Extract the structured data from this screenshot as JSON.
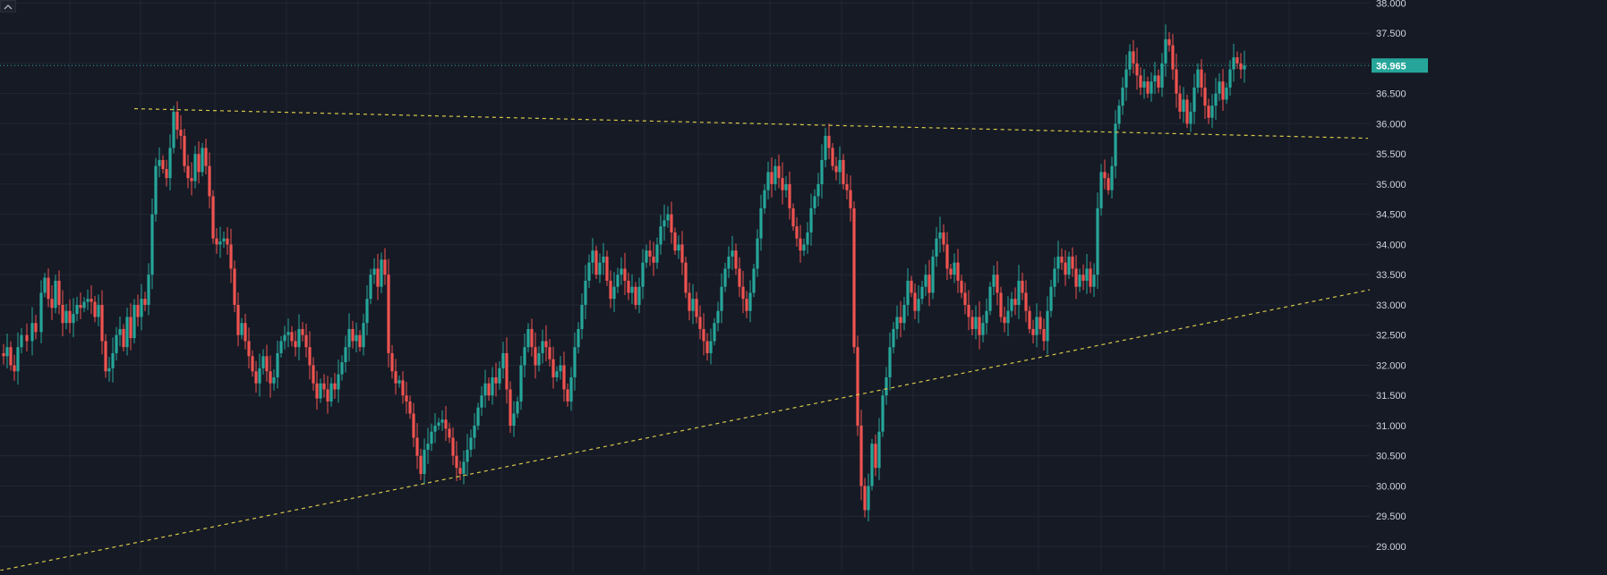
{
  "colors": {
    "background": "#161a25",
    "grid": "#232733",
    "up": "#26a69a",
    "down": "#ef5350",
    "trendline": "#d6c84a",
    "price_line": "#26a69a",
    "axis_text": "#d1d4dc"
  },
  "toolbar": {
    "collapse_icon": "chevron-up-icon"
  },
  "chart_data": {
    "type": "candlestick",
    "title": "",
    "y_axis": {
      "min": 28.6,
      "max": 38.05,
      "ticks": [
        "29.000",
        "29.500",
        "30.000",
        "30.500",
        "31.000",
        "31.500",
        "32.000",
        "32.500",
        "33.000",
        "33.500",
        "34.000",
        "34.500",
        "35.000",
        "35.500",
        "36.000",
        "36.500",
        "37.000",
        "37.500",
        "38.000"
      ]
    },
    "last_price": {
      "value": 36.965,
      "label": "36.965"
    },
    "grid": true,
    "series_points": [
      [
        0,
        32.2
      ],
      [
        4,
        32.15
      ],
      [
        8,
        32.3
      ],
      [
        12,
        32.0
      ],
      [
        16,
        31.9
      ],
      [
        20,
        32.3
      ],
      [
        24,
        32.5
      ],
      [
        30,
        32.4
      ],
      [
        36,
        32.7
      ],
      [
        40,
        32.55
      ],
      [
        46,
        33.2
      ],
      [
        50,
        33.45
      ],
      [
        54,
        33.1
      ],
      [
        58,
        32.95
      ],
      [
        62,
        33.4
      ],
      [
        66,
        33.0
      ],
      [
        70,
        32.7
      ],
      [
        74,
        32.9
      ],
      [
        78,
        32.7
      ],
      [
        82,
        32.85
      ],
      [
        86,
        33.0
      ],
      [
        90,
        32.95
      ],
      [
        94,
        33.05
      ],
      [
        98,
        33.1
      ],
      [
        102,
        33.05
      ],
      [
        106,
        32.8
      ],
      [
        110,
        33.0
      ],
      [
        114,
        32.4
      ],
      [
        118,
        31.9
      ],
      [
        122,
        31.95
      ],
      [
        126,
        32.2
      ],
      [
        130,
        32.5
      ],
      [
        134,
        32.6
      ],
      [
        138,
        32.3
      ],
      [
        142,
        32.8
      ],
      [
        146,
        32.45
      ],
      [
        150,
        33.0
      ],
      [
        154,
        32.8
      ],
      [
        158,
        33.1
      ],
      [
        162,
        33.0
      ],
      [
        166,
        33.5
      ],
      [
        170,
        34.5
      ],
      [
        174,
        35.3
      ],
      [
        178,
        35.4
      ],
      [
        182,
        35.25
      ],
      [
        186,
        35.1
      ],
      [
        190,
        35.6
      ],
      [
        194,
        36.2
      ],
      [
        198,
        35.9
      ],
      [
        202,
        35.8
      ],
      [
        206,
        35.3
      ],
      [
        210,
        35.1
      ],
      [
        214,
        35.05
      ],
      [
        218,
        35.5
      ],
      [
        222,
        35.2
      ],
      [
        226,
        35.6
      ],
      [
        230,
        35.3
      ],
      [
        234,
        34.8
      ],
      [
        238,
        34.1
      ],
      [
        242,
        34.0
      ],
      [
        246,
        34.05
      ],
      [
        250,
        34.1
      ],
      [
        254,
        34.0
      ],
      [
        258,
        33.6
      ],
      [
        262,
        33.0
      ],
      [
        266,
        32.5
      ],
      [
        270,
        32.7
      ],
      [
        274,
        32.4
      ],
      [
        278,
        32.15
      ],
      [
        282,
        31.9
      ],
      [
        286,
        31.7
      ],
      [
        290,
        31.95
      ],
      [
        294,
        32.15
      ],
      [
        298,
        31.9
      ],
      [
        302,
        31.7
      ],
      [
        306,
        31.8
      ],
      [
        310,
        32.2
      ],
      [
        314,
        32.4
      ],
      [
        318,
        32.5
      ],
      [
        322,
        32.55
      ],
      [
        326,
        32.4
      ],
      [
        330,
        32.3
      ],
      [
        334,
        32.6
      ],
      [
        338,
        32.5
      ],
      [
        342,
        32.3
      ],
      [
        346,
        32.0
      ],
      [
        350,
        31.7
      ],
      [
        354,
        31.45
      ],
      [
        358,
        31.7
      ],
      [
        362,
        31.6
      ],
      [
        366,
        31.4
      ],
      [
        370,
        31.7
      ],
      [
        374,
        31.6
      ],
      [
        378,
        31.85
      ],
      [
        382,
        32.05
      ],
      [
        386,
        32.3
      ],
      [
        390,
        32.6
      ],
      [
        394,
        32.4
      ],
      [
        398,
        32.5
      ],
      [
        402,
        32.3
      ],
      [
        406,
        32.7
      ],
      [
        410,
        33.1
      ],
      [
        414,
        33.5
      ],
      [
        418,
        33.6
      ],
      [
        422,
        33.3
      ],
      [
        426,
        33.75
      ],
      [
        430,
        33.5
      ],
      [
        434,
        32.2
      ],
      [
        438,
        31.9
      ],
      [
        442,
        31.7
      ],
      [
        446,
        31.75
      ],
      [
        450,
        31.5
      ],
      [
        454,
        31.4
      ],
      [
        458,
        31.2
      ],
      [
        462,
        30.8
      ],
      [
        466,
        30.5
      ],
      [
        470,
        30.2
      ],
      [
        474,
        30.6
      ],
      [
        478,
        30.7
      ],
      [
        482,
        30.9
      ],
      [
        486,
        31.0
      ],
      [
        490,
        31.05
      ],
      [
        494,
        31.1
      ],
      [
        498,
        30.95
      ],
      [
        502,
        30.8
      ],
      [
        506,
        30.5
      ],
      [
        510,
        30.3
      ],
      [
        514,
        30.2
      ],
      [
        518,
        30.4
      ],
      [
        522,
        30.6
      ],
      [
        526,
        30.8
      ],
      [
        530,
        31.0
      ],
      [
        534,
        31.3
      ],
      [
        538,
        31.5
      ],
      [
        542,
        31.7
      ],
      [
        546,
        31.5
      ],
      [
        550,
        31.8
      ],
      [
        554,
        31.7
      ],
      [
        558,
        31.95
      ],
      [
        562,
        32.2
      ],
      [
        566,
        31.6
      ],
      [
        570,
        31.0
      ],
      [
        574,
        31.2
      ],
      [
        578,
        31.4
      ],
      [
        582,
        32.0
      ],
      [
        586,
        32.3
      ],
      [
        590,
        32.6
      ],
      [
        594,
        32.3
      ],
      [
        598,
        32.0
      ],
      [
        602,
        32.2
      ],
      [
        606,
        32.4
      ],
      [
        610,
        32.3
      ],
      [
        614,
        32.1
      ],
      [
        618,
        31.8
      ],
      [
        622,
        31.9
      ],
      [
        626,
        32.0
      ],
      [
        630,
        31.6
      ],
      [
        634,
        31.4
      ],
      [
        638,
        31.8
      ],
      [
        642,
        32.3
      ],
      [
        646,
        32.6
      ],
      [
        650,
        33.0
      ],
      [
        654,
        33.4
      ],
      [
        658,
        33.7
      ],
      [
        662,
        33.9
      ],
      [
        666,
        33.5
      ],
      [
        670,
        33.7
      ],
      [
        674,
        33.8
      ],
      [
        678,
        33.4
      ],
      [
        682,
        33.1
      ],
      [
        686,
        33.3
      ],
      [
        690,
        33.5
      ],
      [
        694,
        33.6
      ],
      [
        698,
        33.4
      ],
      [
        702,
        33.2
      ],
      [
        706,
        33.3
      ],
      [
        710,
        33.0
      ],
      [
        714,
        33.3
      ],
      [
        718,
        33.7
      ],
      [
        722,
        33.9
      ],
      [
        726,
        33.8
      ],
      [
        730,
        33.7
      ],
      [
        734,
        34.0
      ],
      [
        738,
        34.3
      ],
      [
        742,
        34.4
      ],
      [
        746,
        34.5
      ],
      [
        750,
        34.2
      ],
      [
        754,
        33.9
      ],
      [
        758,
        34.0
      ],
      [
        762,
        33.7
      ],
      [
        766,
        33.2
      ],
      [
        770,
        32.9
      ],
      [
        774,
        33.1
      ],
      [
        778,
        32.8
      ],
      [
        782,
        32.6
      ],
      [
        786,
        32.4
      ],
      [
        790,
        32.2
      ],
      [
        794,
        32.4
      ],
      [
        798,
        32.7
      ],
      [
        802,
        32.9
      ],
      [
        806,
        33.3
      ],
      [
        810,
        33.6
      ],
      [
        814,
        33.8
      ],
      [
        818,
        33.9
      ],
      [
        822,
        33.6
      ],
      [
        826,
        33.3
      ],
      [
        830,
        33.1
      ],
      [
        834,
        32.9
      ],
      [
        838,
        33.2
      ],
      [
        842,
        33.6
      ],
      [
        846,
        34.1
      ],
      [
        850,
        34.6
      ],
      [
        854,
        34.9
      ],
      [
        858,
        35.2
      ],
      [
        862,
        35.0
      ],
      [
        866,
        35.3
      ],
      [
        870,
        35.1
      ],
      [
        874,
        34.9
      ],
      [
        878,
        35.0
      ],
      [
        882,
        34.6
      ],
      [
        886,
        34.3
      ],
      [
        890,
        34.1
      ],
      [
        894,
        33.9
      ],
      [
        898,
        34.0
      ],
      [
        902,
        34.2
      ],
      [
        906,
        34.6
      ],
      [
        910,
        34.8
      ],
      [
        914,
        35.0
      ],
      [
        918,
        35.4
      ],
      [
        922,
        35.8
      ],
      [
        926,
        35.6
      ],
      [
        930,
        35.3
      ],
      [
        934,
        35.2
      ],
      [
        938,
        35.4
      ],
      [
        942,
        35.0
      ],
      [
        946,
        34.9
      ],
      [
        950,
        34.6
      ],
      [
        954,
        32.3
      ],
      [
        958,
        31.0
      ],
      [
        962,
        30.0
      ],
      [
        966,
        29.6
      ],
      [
        970,
        30.0
      ],
      [
        974,
        30.7
      ],
      [
        978,
        30.3
      ],
      [
        982,
        30.9
      ],
      [
        986,
        31.5
      ],
      [
        990,
        31.8
      ],
      [
        994,
        32.3
      ],
      [
        998,
        32.6
      ],
      [
        1002,
        32.8
      ],
      [
        1006,
        32.7
      ],
      [
        1010,
        33.0
      ],
      [
        1014,
        33.4
      ],
      [
        1018,
        33.2
      ],
      [
        1022,
        32.9
      ],
      [
        1026,
        33.1
      ],
      [
        1030,
        33.3
      ],
      [
        1034,
        33.5
      ],
      [
        1038,
        33.2
      ],
      [
        1042,
        33.8
      ],
      [
        1046,
        34.1
      ],
      [
        1050,
        34.2
      ],
      [
        1054,
        34.0
      ],
      [
        1058,
        33.6
      ],
      [
        1062,
        33.5
      ],
      [
        1066,
        33.7
      ],
      [
        1070,
        33.4
      ],
      [
        1074,
        33.2
      ],
      [
        1078,
        33.0
      ],
      [
        1082,
        32.8
      ],
      [
        1086,
        32.6
      ],
      [
        1090,
        32.8
      ],
      [
        1094,
        32.5
      ],
      [
        1098,
        32.7
      ],
      [
        1102,
        32.9
      ],
      [
        1106,
        33.3
      ],
      [
        1110,
        33.5
      ],
      [
        1114,
        33.2
      ],
      [
        1118,
        32.8
      ],
      [
        1122,
        32.7
      ],
      [
        1126,
        32.9
      ],
      [
        1130,
        33.1
      ],
      [
        1134,
        33.0
      ],
      [
        1138,
        33.4
      ],
      [
        1142,
        33.2
      ],
      [
        1146,
        32.9
      ],
      [
        1150,
        32.6
      ],
      [
        1154,
        32.5
      ],
      [
        1158,
        32.8
      ],
      [
        1162,
        32.6
      ],
      [
        1166,
        32.4
      ],
      [
        1170,
        32.9
      ],
      [
        1174,
        33.3
      ],
      [
        1178,
        33.6
      ],
      [
        1182,
        33.8
      ],
      [
        1186,
        33.7
      ],
      [
        1190,
        33.5
      ],
      [
        1194,
        33.8
      ],
      [
        1198,
        33.6
      ],
      [
        1202,
        33.3
      ],
      [
        1206,
        33.5
      ],
      [
        1210,
        33.4
      ],
      [
        1214,
        33.6
      ],
      [
        1218,
        33.3
      ],
      [
        1222,
        33.5
      ],
      [
        1226,
        34.6
      ],
      [
        1230,
        35.2
      ],
      [
        1234,
        35.1
      ],
      [
        1238,
        34.9
      ],
      [
        1242,
        35.3
      ],
      [
        1246,
        36.0
      ],
      [
        1250,
        36.3
      ],
      [
        1254,
        36.6
      ],
      [
        1258,
        36.9
      ],
      [
        1262,
        37.2
      ],
      [
        1266,
        37.0
      ],
      [
        1270,
        36.8
      ],
      [
        1274,
        36.6
      ],
      [
        1278,
        36.7
      ],
      [
        1282,
        36.5
      ],
      [
        1286,
        36.7
      ],
      [
        1290,
        36.8
      ],
      [
        1294,
        36.6
      ],
      [
        1298,
        37.0
      ],
      [
        1302,
        37.4
      ],
      [
        1306,
        37.3
      ],
      [
        1310,
        36.9
      ],
      [
        1314,
        36.5
      ],
      [
        1318,
        36.2
      ],
      [
        1322,
        36.4
      ],
      [
        1326,
        36.0
      ],
      [
        1330,
        36.2
      ],
      [
        1334,
        36.6
      ],
      [
        1338,
        36.9
      ],
      [
        1342,
        36.6
      ],
      [
        1346,
        36.3
      ],
      [
        1350,
        36.1
      ],
      [
        1354,
        36.3
      ],
      [
        1358,
        36.5
      ],
      [
        1362,
        36.7
      ],
      [
        1366,
        36.4
      ],
      [
        1370,
        36.6
      ],
      [
        1374,
        36.9
      ],
      [
        1378,
        37.1
      ],
      [
        1382,
        37.0
      ],
      [
        1386,
        36.9
      ],
      [
        1390,
        36.965
      ]
    ],
    "trendlines": [
      {
        "kind": "resistance",
        "start": [
          150,
          36.25
        ],
        "end": [
          1528,
          35.76
        ]
      },
      {
        "kind": "support",
        "start": [
          0,
          28.6
        ],
        "end": [
          1530,
          33.25
        ]
      }
    ]
  }
}
